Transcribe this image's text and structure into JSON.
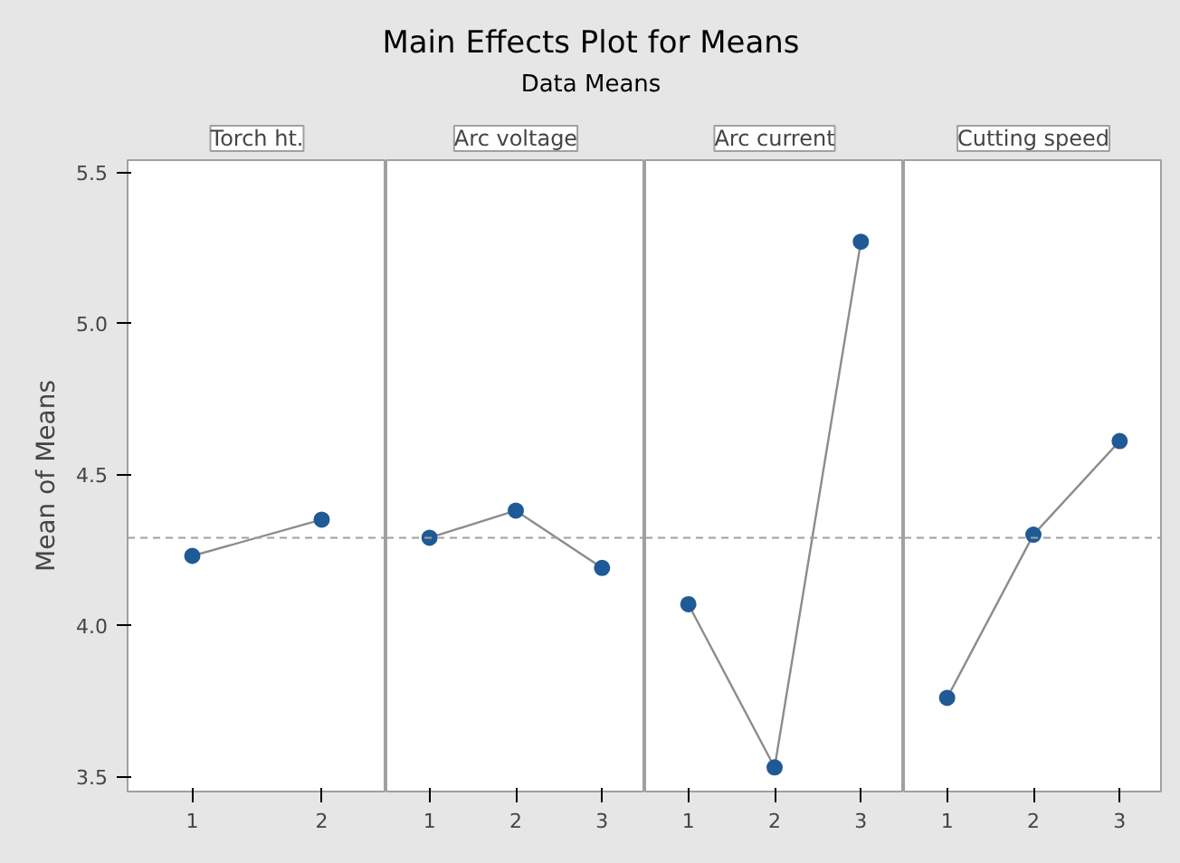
{
  "chart_data": [
    {
      "type": "other",
      "title": "Main Effects Plot for Means",
      "subtitle": "Data Means"
    },
    {
      "type": "line",
      "title": "Torch ht.",
      "ylabel": "Mean of Means",
      "categories": [
        "1",
        "2"
      ],
      "series": [
        {
          "color": "#1f5a96",
          "values": [
            4.23,
            4.35
          ]
        }
      ],
      "ylim": [
        3.45,
        5.54
      ],
      "yticks": [
        {
          "value": 3.5,
          "label": "3.5"
        },
        {
          "value": 4.0,
          "label": "4.0"
        },
        {
          "value": 4.5,
          "label": "4.5"
        },
        {
          "value": 5.0,
          "label": "5.0"
        },
        {
          "value": 5.5,
          "label": "5.5"
        }
      ],
      "ref_lines": [
        {
          "axis": "y",
          "value": 4.29,
          "color": "#a0a0a0",
          "line_style": "dashed"
        }
      ],
      "marker": "circle",
      "grid": false
    },
    {
      "type": "line",
      "title": "Arc voltage",
      "categories": [
        "1",
        "2",
        "3"
      ],
      "series": [
        {
          "color": "#1f5a96",
          "values": [
            4.29,
            4.38,
            4.19
          ]
        }
      ],
      "ylim": [
        3.45,
        5.54
      ],
      "tick_labels": "x",
      "ref_lines": [
        {
          "axis": "y",
          "value": 4.29,
          "color": "#a0a0a0",
          "line_style": "dashed"
        }
      ],
      "marker": "circle",
      "grid": false
    },
    {
      "type": "line",
      "title": "Arc current",
      "categories": [
        "1",
        "2",
        "3"
      ],
      "series": [
        {
          "color": "#1f5a96",
          "values": [
            4.07,
            3.53,
            5.27
          ]
        }
      ],
      "ylim": [
        3.45,
        5.54
      ],
      "tick_labels": "x",
      "ref_lines": [
        {
          "axis": "y",
          "value": 4.29,
          "color": "#a0a0a0",
          "line_style": "dashed"
        }
      ],
      "marker": "circle",
      "grid": false
    },
    {
      "type": "line",
      "title": "Cutting speed",
      "categories": [
        "1",
        "2",
        "3"
      ],
      "series": [
        {
          "color": "#1f5a96",
          "values": [
            3.76,
            4.3,
            4.61
          ]
        }
      ],
      "ylim": [
        3.45,
        5.54
      ],
      "tick_labels": "x",
      "ref_lines": [
        {
          "axis": "y",
          "value": 4.29,
          "color": "#a0a0a0",
          "line_style": "dashed"
        }
      ],
      "marker": "circle",
      "grid": false
    }
  ]
}
